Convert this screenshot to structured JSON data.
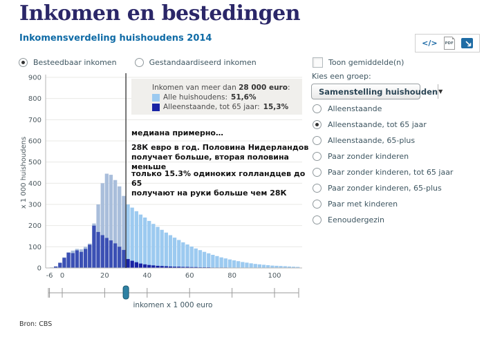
{
  "page": {
    "title": "Inkomen en bestedingen",
    "subtitle": "Inkomensverdeling huishoudens 2014",
    "source": "Bron: CBS"
  },
  "toolbar": {
    "embed_label": "</>",
    "pdf_label": "PDF",
    "icons": [
      "embed-code-icon",
      "pdf-export-icon",
      "image-download-icon"
    ]
  },
  "income_type_options": [
    {
      "label": "Besteedbaar inkomen",
      "selected": true
    },
    {
      "label": "Gestandaardiseerd inkomen",
      "selected": false
    }
  ],
  "panel": {
    "show_means_label": "Toon gemiddelde(n)",
    "show_means_checked": false,
    "choose_group_label": "Kies een groep:",
    "group_dropdown_value": "Samenstelling huishouden",
    "group_options": [
      {
        "label": "Alleenstaande",
        "selected": false
      },
      {
        "label": "Alleenstaande, tot 65 jaar",
        "selected": true
      },
      {
        "label": "Alleenstaande, 65-plus",
        "selected": false
      },
      {
        "label": "Paar zonder kinderen",
        "selected": false
      },
      {
        "label": "Paar zonder kinderen, tot 65 jaar",
        "selected": false
      },
      {
        "label": "Paar zonder kinderen, 65-plus",
        "selected": false
      },
      {
        "label": "Paar met kinderen",
        "selected": false
      },
      {
        "label": "Eenoudergezin",
        "selected": false
      }
    ]
  },
  "legend": {
    "title_prefix": "Inkomen van meer dan ",
    "title_bold": "28 000 euro",
    "title_suffix": ":",
    "items": [
      {
        "label": "Alle huishoudens: ",
        "value": "51,6%",
        "swatch": "#9ccaf0"
      },
      {
        "label": "Alleenstaande, tot 65 jaar: ",
        "value": "15,3%",
        "swatch": "#1823a5"
      }
    ]
  },
  "annotations": [
    {
      "lines": [
        "медиана  примерно…"
      ]
    },
    {
      "lines": [
        "28К евро в год. Половина Нидерландов",
        "получает больше, вторая половина меньше"
      ]
    },
    {
      "lines": [
        "только 15.3% одиноких голландцев до 65",
        "получают на руки больше чем 28К"
      ]
    }
  ],
  "chart_data": {
    "type": "bar",
    "title": "Inkomensverdeling huishoudens 2014",
    "xlabel": "inkomen x 1 000 euro",
    "ylabel": "x 1 000 huishoudens",
    "bin_start": -6,
    "bin_width": 2,
    "x_ticks": [
      -6,
      0,
      20,
      40,
      60,
      80,
      100
    ],
    "ylim": [
      0,
      900
    ],
    "y_tick_step": 100,
    "grid": true,
    "median_line_x": 30,
    "slider_value_x": 30,
    "highlight_threshold_euro": 28000,
    "series": [
      {
        "name": "Alle huishoudens",
        "color_below": "#a9bedb",
        "color_above": "#9ccaf0",
        "values": [
          2,
          7,
          25,
          50,
          74,
          82,
          90,
          88,
          100,
          115,
          210,
          300,
          400,
          445,
          440,
          415,
          385,
          340,
          300,
          285,
          268,
          252,
          238,
          222,
          208,
          194,
          180,
          167,
          155,
          143,
          132,
          121,
          111,
          101,
          92,
          84,
          76,
          69,
          62,
          56,
          50,
          45,
          40,
          36,
          32,
          28,
          25,
          22,
          19,
          17,
          15,
          13,
          11,
          10,
          9,
          8,
          7,
          6,
          5
        ]
      },
      {
        "name": "Alleenstaande, tot 65 jaar",
        "color_below": "#3b50b4",
        "color_above": "#1823a5",
        "values": [
          2,
          7,
          24,
          48,
          72,
          70,
          83,
          76,
          90,
          110,
          200,
          170,
          155,
          142,
          130,
          116,
          100,
          85,
          42,
          34,
          27,
          21,
          17,
          14,
          12,
          10,
          9,
          8,
          7,
          6,
          6,
          5,
          5,
          4,
          4,
          3,
          3,
          3,
          2,
          2,
          2,
          2,
          1,
          1,
          1,
          1,
          1,
          1,
          1,
          0,
          0,
          0,
          0,
          0,
          0,
          0,
          0,
          0,
          0
        ]
      }
    ]
  }
}
